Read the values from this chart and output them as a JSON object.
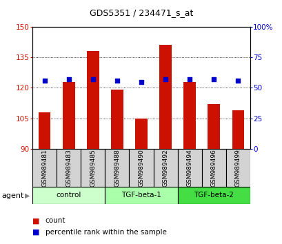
{
  "title": "GDS5351 / 234471_s_at",
  "samples": [
    "GSM989481",
    "GSM989483",
    "GSM989485",
    "GSM989488",
    "GSM989490",
    "GSM989492",
    "GSM989494",
    "GSM989496",
    "GSM989499"
  ],
  "count_values": [
    108,
    123,
    138,
    119,
    105,
    141,
    123,
    112,
    109
  ],
  "percentile_values": [
    56,
    57,
    57,
    56,
    55,
    57,
    57,
    57,
    56
  ],
  "ylim_left": [
    90,
    150
  ],
  "ylim_right": [
    0,
    100
  ],
  "yticks_left": [
    90,
    105,
    120,
    135,
    150
  ],
  "yticks_right": [
    0,
    25,
    50,
    75,
    100
  ],
  "bar_color": "#cc1100",
  "dot_color": "#0000cc",
  "groups": [
    {
      "label": "control",
      "indices": [
        0,
        1,
        2
      ],
      "color": "#ccffcc"
    },
    {
      "label": "TGF-beta-1",
      "indices": [
        3,
        4,
        5
      ],
      "color": "#aaffaa"
    },
    {
      "label": "TGF-beta-2",
      "indices": [
        6,
        7,
        8
      ],
      "color": "#44dd44"
    }
  ],
  "agent_label": "agent",
  "legend_count_label": "count",
  "legend_percentile_label": "percentile rank within the sample",
  "bar_color_legend": "#cc1100",
  "dot_color_legend": "#0000cc",
  "bar_width": 0.5,
  "ylabel_left_color": "#cc1100",
  "ylabel_right_color": "#0000cc",
  "sample_box_color": "#d3d3d3",
  "title_fontsize": 9,
  "tick_fontsize": 7.5,
  "label_fontsize": 6.5
}
